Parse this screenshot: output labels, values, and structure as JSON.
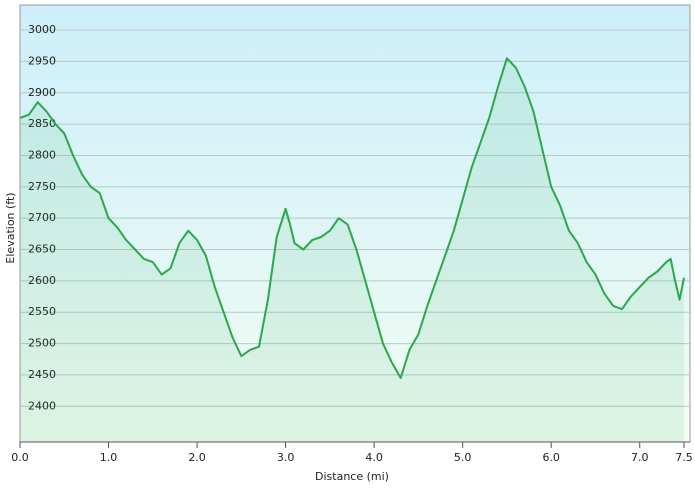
{
  "chart_data": {
    "type": "area",
    "x_label": "Distance  (mi)",
    "y_label": "Elevation (ft)",
    "x": [
      0.0,
      0.1,
      0.2,
      0.3,
      0.4,
      0.5,
      0.6,
      0.7,
      0.8,
      0.9,
      1.0,
      1.1,
      1.2,
      1.3,
      1.4,
      1.5,
      1.6,
      1.7,
      1.8,
      1.9,
      2.0,
      2.1,
      2.2,
      2.3,
      2.4,
      2.5,
      2.6,
      2.7,
      2.8,
      2.9,
      3.0,
      3.05,
      3.1,
      3.2,
      3.3,
      3.4,
      3.5,
      3.6,
      3.7,
      3.8,
      3.9,
      4.0,
      4.1,
      4.2,
      4.3,
      4.4,
      4.5,
      4.6,
      4.7,
      4.8,
      4.9,
      5.0,
      5.1,
      5.2,
      5.3,
      5.4,
      5.5,
      5.6,
      5.7,
      5.8,
      5.9,
      6.0,
      6.1,
      6.2,
      6.3,
      6.4,
      6.5,
      6.6,
      6.7,
      6.8,
      6.9,
      7.0,
      7.1,
      7.2,
      7.3,
      7.35,
      7.4,
      7.45,
      7.5
    ],
    "series": [
      {
        "name": "Elevation",
        "color": "#2aa84a",
        "values": [
          2860,
          2865,
          2885,
          2870,
          2850,
          2835,
          2800,
          2770,
          2750,
          2740,
          2700,
          2685,
          2665,
          2650,
          2635,
          2630,
          2610,
          2620,
          2660,
          2680,
          2665,
          2640,
          2590,
          2550,
          2510,
          2480,
          2490,
          2495,
          2570,
          2670,
          2715,
          2690,
          2660,
          2650,
          2665,
          2670,
          2680,
          2700,
          2690,
          2650,
          2600,
          2550,
          2500,
          2470,
          2445,
          2490,
          2515,
          2560,
          2600,
          2640,
          2680,
          2730,
          2780,
          2820,
          2860,
          2910,
          2955,
          2940,
          2910,
          2870,
          2810,
          2750,
          2720,
          2680,
          2660,
          2630,
          2610,
          2580,
          2560,
          2555,
          2575,
          2590,
          2605,
          2615,
          2630,
          2635,
          2600,
          2570,
          2605
        ]
      }
    ],
    "xlim": [
      0,
      7.5
    ],
    "ylim": [
      2343,
      3040
    ],
    "xticks": [
      {
        "value": 0,
        "label": "0.0"
      },
      {
        "value": 1,
        "label": "1.0"
      },
      {
        "value": 2,
        "label": "2.0"
      },
      {
        "value": 3,
        "label": "3.0"
      },
      {
        "value": 4,
        "label": "4.0"
      },
      {
        "value": 5,
        "label": "5.0"
      },
      {
        "value": 6,
        "label": "6.0"
      },
      {
        "value": 7,
        "label": "7.0"
      },
      7.5
    ],
    "yticks": [
      2400,
      2450,
      2500,
      2550,
      2600,
      2650,
      2700,
      2750,
      2800,
      2850,
      2900,
      2950,
      3000
    ],
    "grid": true
  }
}
